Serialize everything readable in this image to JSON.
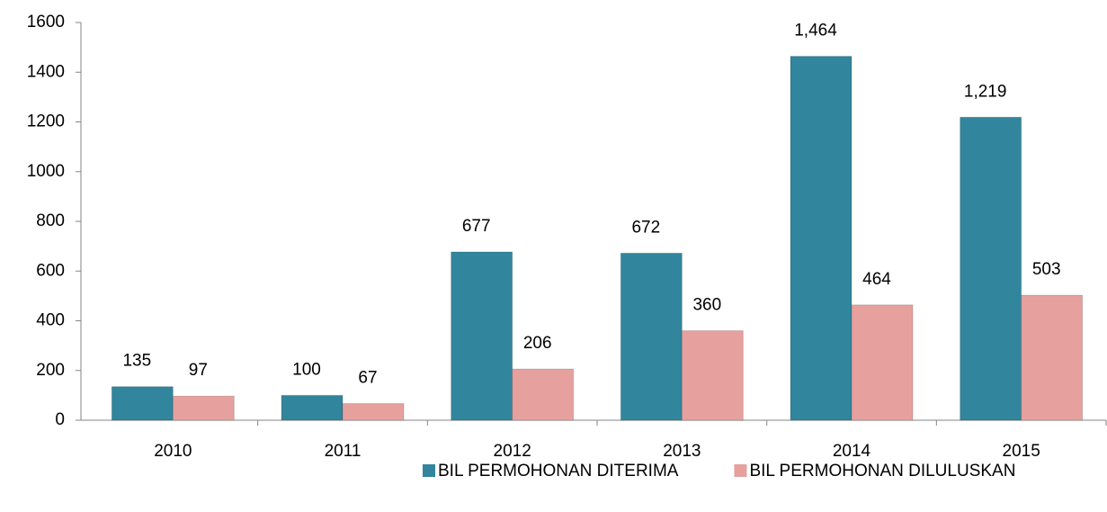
{
  "chart_data": {
    "type": "bar",
    "categories": [
      "2010",
      "2011",
      "2012",
      "2013",
      "2014",
      "2015"
    ],
    "series": [
      {
        "name": "BIL PERMOHONAN DITERIMA",
        "color": "#31859c",
        "values": [
          135,
          100,
          677,
          672,
          1464,
          1219
        ],
        "value_labels": [
          "135",
          "100",
          "677",
          "672",
          "1,464",
          "1,219"
        ]
      },
      {
        "name": "BIL PERMOHONAN DILULUSKAN",
        "color": "#e6a09e",
        "values": [
          97,
          67,
          206,
          360,
          464,
          503
        ]
      }
    ],
    "ylim": [
      0,
      1600
    ],
    "yticks": [
      0,
      200,
      400,
      600,
      800,
      1000,
      1200,
      1400,
      1600
    ],
    "grid": false,
    "legend": "bottom"
  }
}
